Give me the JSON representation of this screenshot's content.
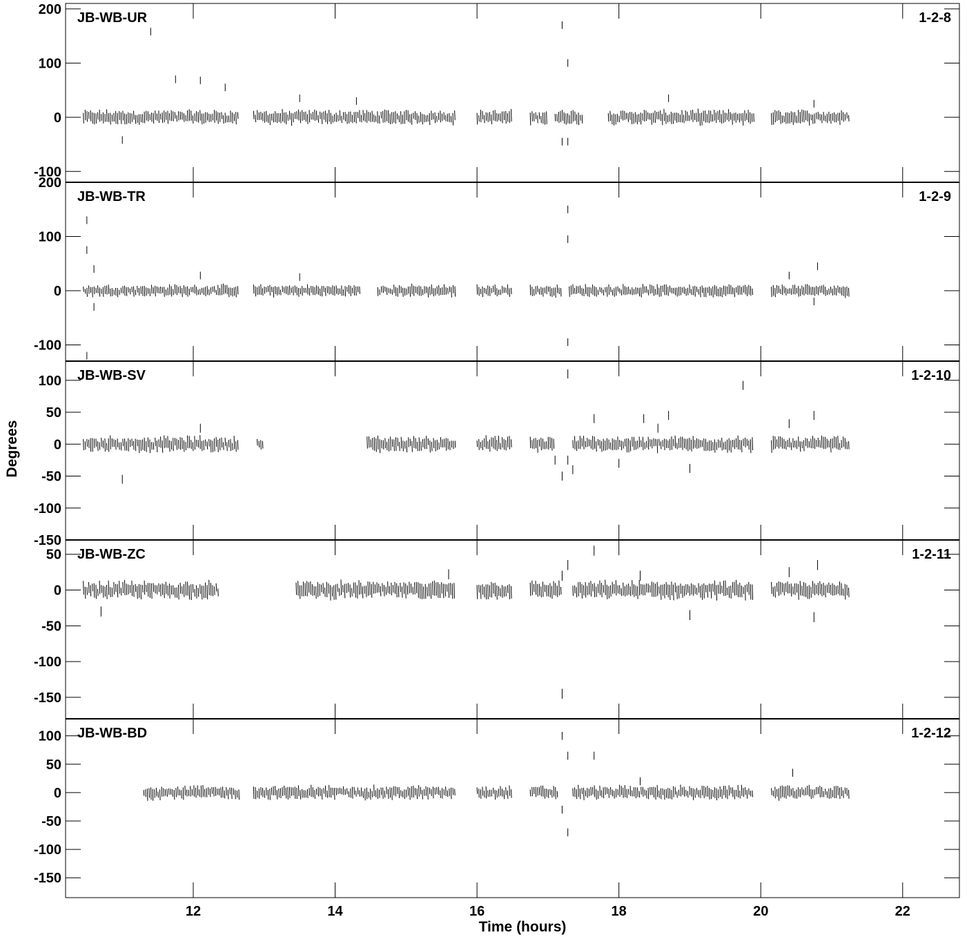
{
  "chart_data": {
    "type": "scatter",
    "xlabel": "Time (hours)",
    "ylabel": "Degrees",
    "xlim": [
      10.2,
      22.8
    ],
    "xticks": [
      12,
      14,
      16,
      18,
      20,
      22
    ],
    "xtick_labels": [
      "12",
      "14",
      "16",
      "18",
      "20",
      "22"
    ],
    "grid": false,
    "panels": [
      {
        "baseline": "JB-WB-UR",
        "code": "1-2-8",
        "ylim": [
          -120,
          210
        ],
        "yticks": [
          -100,
          0,
          100,
          200
        ],
        "ytick_labels": [
          "-100",
          "0",
          "100",
          "200"
        ],
        "segments": [
          [
            10.45,
            12.65
          ],
          [
            12.85,
            15.7
          ],
          [
            16.0,
            16.5
          ],
          [
            16.75,
            17.0
          ],
          [
            17.1,
            17.5
          ],
          [
            17.85,
            19.9
          ],
          [
            20.15,
            21.25
          ]
        ],
        "spread": 12,
        "outliers": [
          [
            11.4,
            158
          ],
          [
            11.75,
            70
          ],
          [
            12.1,
            68
          ],
          [
            12.45,
            55
          ],
          [
            11.0,
            -42
          ],
          [
            17.2,
            170
          ],
          [
            17.28,
            100
          ],
          [
            17.2,
            -45
          ],
          [
            17.28,
            -45
          ],
          [
            18.7,
            35
          ],
          [
            13.5,
            35
          ],
          [
            14.3,
            30
          ],
          [
            20.75,
            25
          ]
        ]
      },
      {
        "baseline": "JB-WB-TR",
        "code": "1-2-9",
        "ylim": [
          -130,
          200
        ],
        "yticks": [
          -100,
          0,
          100,
          200
        ],
        "ytick_labels": [
          "-100",
          "0",
          "100",
          "200"
        ],
        "segments": [
          [
            10.45,
            12.65
          ],
          [
            12.85,
            14.35
          ],
          [
            14.6,
            15.7
          ],
          [
            16.0,
            16.5
          ],
          [
            16.75,
            17.2
          ],
          [
            17.3,
            19.9
          ],
          [
            20.15,
            21.25
          ]
        ],
        "spread": 10,
        "outliers": [
          [
            10.5,
            130
          ],
          [
            10.5,
            75
          ],
          [
            10.6,
            40
          ],
          [
            10.6,
            -30
          ],
          [
            10.5,
            -120
          ],
          [
            17.28,
            150
          ],
          [
            17.28,
            95
          ],
          [
            17.28,
            -95
          ],
          [
            13.5,
            25
          ],
          [
            12.1,
            28
          ],
          [
            20.8,
            45
          ],
          [
            20.75,
            -20
          ],
          [
            20.4,
            28
          ]
        ]
      },
      {
        "baseline": "JB-WB-SV",
        "code": "1-2-10",
        "ylim": [
          -150,
          130
        ],
        "yticks": [
          -150,
          -100,
          -50,
          0,
          50,
          100
        ],
        "ytick_labels": [
          "-150",
          "-100",
          "-50",
          "0",
          "50",
          "100"
        ],
        "segments": [
          [
            10.45,
            12.65
          ],
          [
            12.9,
            13.0
          ],
          [
            14.45,
            15.7
          ],
          [
            16.0,
            16.5
          ],
          [
            16.75,
            17.1
          ],
          [
            17.35,
            19.9
          ],
          [
            20.15,
            21.25
          ]
        ],
        "spread": 11,
        "outliers": [
          [
            11.0,
            -55
          ],
          [
            17.2,
            -50
          ],
          [
            17.28,
            -25
          ],
          [
            17.35,
            -40
          ],
          [
            17.28,
            110
          ],
          [
            19.75,
            92
          ],
          [
            18.7,
            45
          ],
          [
            18.35,
            40
          ],
          [
            18.55,
            25
          ],
          [
            17.65,
            40
          ],
          [
            17.1,
            -25
          ],
          [
            18.0,
            -30
          ],
          [
            19.0,
            -38
          ],
          [
            20.75,
            45
          ],
          [
            20.4,
            32
          ],
          [
            12.1,
            25
          ]
        ]
      },
      {
        "baseline": "JB-WB-ZC",
        "code": "1-2-11",
        "ylim": [
          -180,
          70
        ],
        "yticks": [
          -150,
          -100,
          -50,
          0,
          50
        ],
        "ytick_labels": [
          "-150",
          "-100",
          "-50",
          "0",
          "50"
        ],
        "segments": [
          [
            10.45,
            12.35
          ],
          [
            13.45,
            15.7
          ],
          [
            16.0,
            16.5
          ],
          [
            16.75,
            17.2
          ],
          [
            17.35,
            19.9
          ],
          [
            20.15,
            21.25
          ]
        ],
        "spread": 11,
        "outliers": [
          [
            10.7,
            -30
          ],
          [
            17.2,
            -145
          ],
          [
            17.28,
            35
          ],
          [
            17.2,
            20
          ],
          [
            17.65,
            55
          ],
          [
            18.3,
            20
          ],
          [
            19.0,
            -35
          ],
          [
            20.75,
            -38
          ],
          [
            20.8,
            35
          ],
          [
            20.4,
            25
          ],
          [
            15.6,
            22
          ]
        ]
      },
      {
        "baseline": "JB-WB-BD",
        "code": "1-2-12",
        "ylim": [
          -185,
          130
        ],
        "yticks": [
          -150,
          -100,
          -50,
          0,
          50,
          100
        ],
        "ytick_labels": [
          "-150",
          "-100",
          "-50",
          "0",
          "50",
          "100"
        ],
        "segments": [
          [
            11.3,
            12.65
          ],
          [
            12.85,
            15.7
          ],
          [
            16.0,
            16.5
          ],
          [
            16.75,
            17.15
          ],
          [
            17.35,
            19.9
          ],
          [
            20.15,
            21.25
          ]
        ],
        "spread": 11,
        "outliers": [
          [
            17.2,
            100
          ],
          [
            17.28,
            65
          ],
          [
            17.65,
            65
          ],
          [
            17.28,
            -70
          ],
          [
            17.2,
            -30
          ],
          [
            20.45,
            35
          ],
          [
            18.3,
            20
          ]
        ]
      }
    ]
  }
}
